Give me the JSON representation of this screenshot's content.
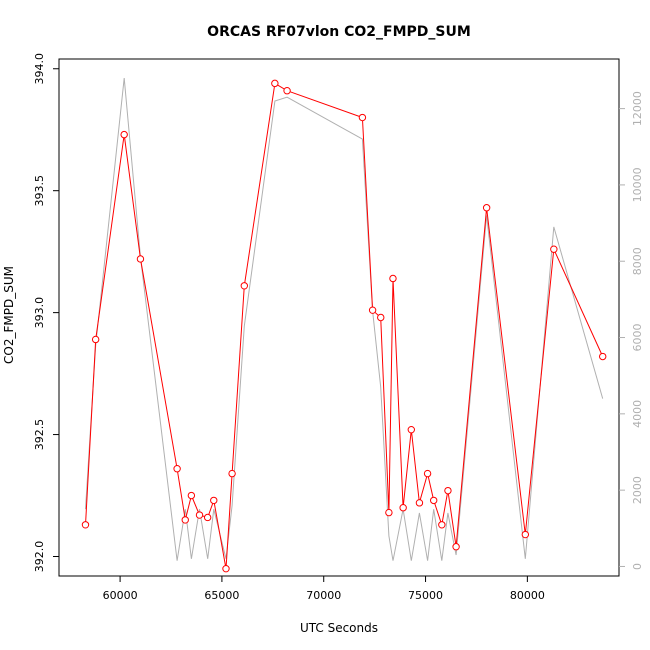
{
  "chart_data": {
    "type": "line",
    "title": "ORCAS RF07vlon CO2_FMPD_SUM",
    "xlabel": "UTC Seconds",
    "ylabel": "CO2_FMPD_SUM",
    "xlim": [
      57000,
      84500
    ],
    "ylim": [
      391.92,
      394.04
    ],
    "y2lim": [
      -250,
      13300
    ],
    "x_ticks": [
      60000,
      65000,
      70000,
      75000,
      80000
    ],
    "x_tick_labels": [
      "60000",
      "65000",
      "70000",
      "75000",
      "80000"
    ],
    "y_ticks": [
      392.0,
      392.5,
      393.0,
      393.5,
      394.0
    ],
    "y_tick_labels": [
      "392.0",
      "392.5",
      "393.0",
      "393.5",
      "394.0"
    ],
    "y2_ticks": [
      0,
      2000,
      4000,
      6000,
      8000,
      10000,
      12000
    ],
    "y2_tick_labels": [
      "0",
      "2000",
      "4000",
      "6000",
      "8000",
      "10000",
      "12000"
    ],
    "grid": false,
    "series": [
      {
        "axis": "left",
        "color": "#ff0000",
        "marker": "open-circle",
        "x": [
          58300,
          58800,
          60200,
          61000,
          62800,
          63200,
          63500,
          63900,
          64300,
          64600,
          65200,
          65500,
          66100,
          67600,
          68200,
          71900,
          72400,
          72800,
          73200,
          73400,
          73900,
          74300,
          74700,
          75100,
          75400,
          75800,
          76100,
          76500,
          78000,
          79900,
          81300,
          83700
        ],
        "y": [
          392.13,
          392.89,
          393.73,
          393.22,
          392.36,
          392.15,
          392.25,
          392.17,
          392.16,
          392.23,
          391.95,
          392.34,
          393.11,
          393.94,
          393.91,
          393.8,
          393.01,
          392.98,
          392.18,
          393.14,
          392.2,
          392.52,
          392.22,
          392.34,
          392.23,
          392.13,
          392.27,
          392.04,
          393.43,
          392.09,
          393.26,
          392.82
        ]
      },
      {
        "axis": "right",
        "color": "#b0b0b0",
        "marker": "none",
        "x": [
          58300,
          58800,
          60200,
          61000,
          62800,
          63200,
          63500,
          63900,
          64300,
          64600,
          65200,
          65500,
          66100,
          67600,
          68200,
          71900,
          72400,
          72800,
          73200,
          73400,
          73900,
          74300,
          74700,
          75100,
          75400,
          75800,
          76100,
          76500,
          78000,
          79900,
          81300,
          83700
        ],
        "y": [
          1500,
          5800,
          12800,
          8100,
          150,
          1500,
          200,
          1500,
          200,
          1500,
          200,
          1600,
          6300,
          12200,
          12300,
          11200,
          6700,
          4700,
          800,
          150,
          1500,
          150,
          1400,
          150,
          1500,
          150,
          1400,
          300,
          9200,
          200,
          8900,
          4400
        ]
      }
    ]
  }
}
